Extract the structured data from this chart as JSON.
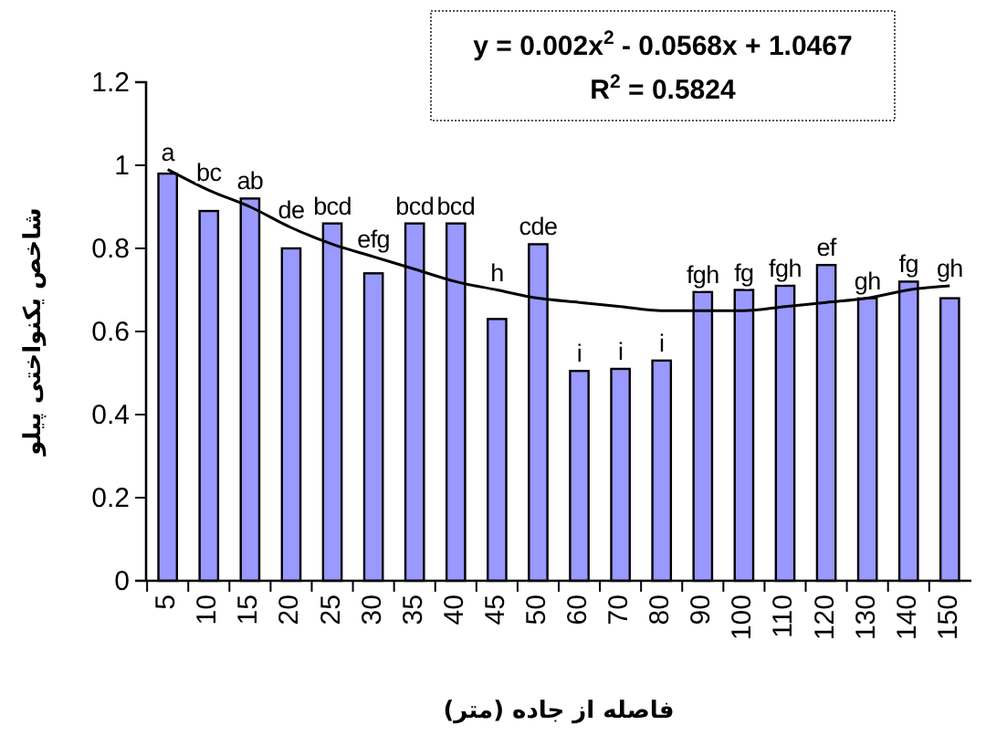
{
  "chart_data": {
    "type": "bar",
    "categories": [
      "5",
      "10",
      "15",
      "20",
      "25",
      "30",
      "35",
      "40",
      "45",
      "50",
      "60",
      "70",
      "80",
      "90",
      "100",
      "110",
      "120",
      "130",
      "140",
      "150"
    ],
    "series": [
      {
        "color": "#9999ff",
        "values": [
          0.98,
          0.89,
          0.92,
          0.8,
          0.86,
          0.74,
          0.86,
          0.86,
          0.63,
          0.81,
          0.505,
          0.51,
          0.53,
          0.695,
          0.7,
          0.71,
          0.76,
          0.68,
          0.72,
          0.68
        ],
        "value_labels": [
          "a",
          "bc",
          "ab",
          "de",
          "bcd",
          "efg",
          "bcd",
          "bcd",
          "h",
          "cde",
          "i",
          "i",
          "i",
          "fgh",
          "fg",
          "fgh",
          "ef",
          "gh",
          "fg",
          "gh"
        ]
      },
      {
        "type": "line",
        "color": "#000000",
        "marker": "none",
        "values": [
          0.99,
          0.94,
          0.9,
          0.85,
          0.81,
          0.78,
          0.75,
          0.72,
          0.7,
          0.68,
          0.67,
          0.66,
          0.65,
          0.65,
          0.65,
          0.66,
          0.67,
          0.68,
          0.7,
          0.71
        ]
      }
    ],
    "xlabel": "فاصله از جاده (متر)",
    "ylabel": "شاخص یکنواختی پیلو",
    "ylim": [
      0,
      1.2
    ],
    "yticks": [
      0,
      {
        "value": 0.2,
        "label": "0.2"
      },
      {
        "value": 0.4,
        "label": "0.4"
      },
      {
        "value": 0.6,
        "label": "0.6"
      },
      {
        "value": 0.8,
        "label": "0.8"
      },
      1,
      {
        "value": 1.2,
        "label": "1.2"
      }
    ],
    "grid": false,
    "annotations": [
      "y = 0.002x$^{2}$ - 0.0568x + 1.0467",
      "R$^{2}$ = 0.5824"
    ]
  }
}
